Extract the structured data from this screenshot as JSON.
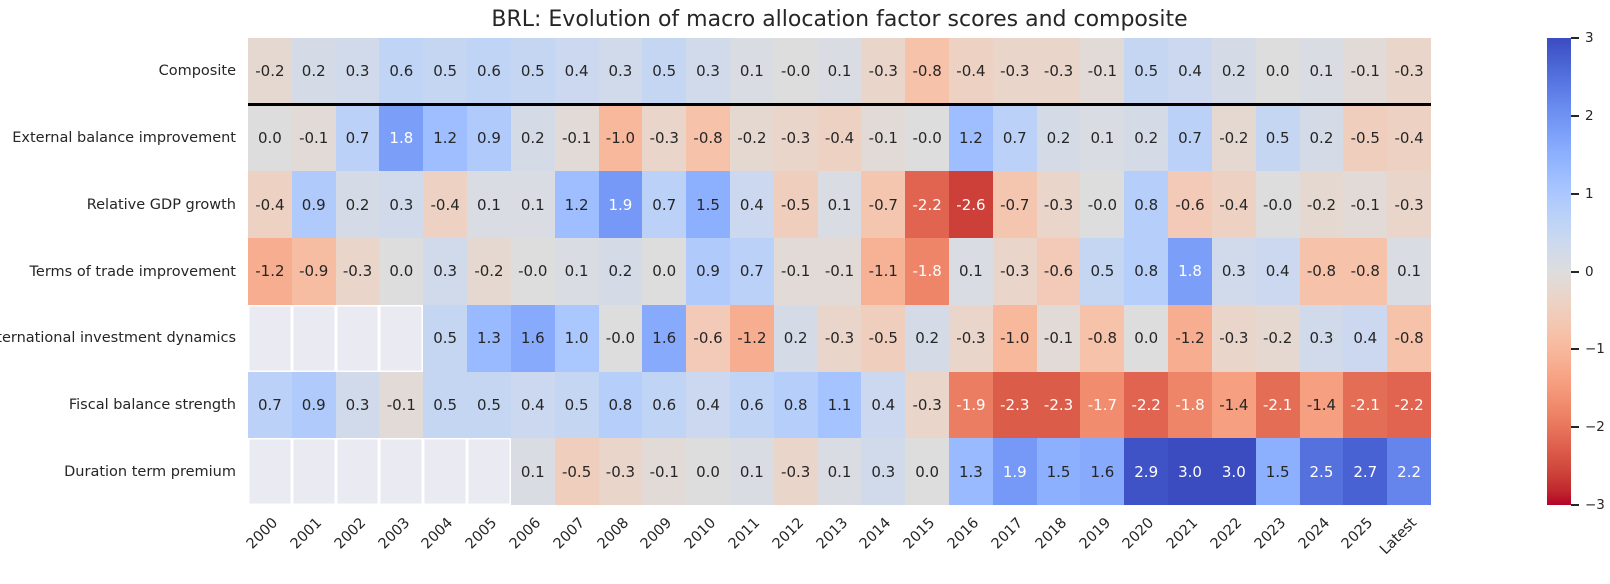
{
  "chart_data": {
    "type": "heatmap",
    "title": "BRL: Evolution of macro allocation factor scores and composite",
    "columns": [
      "2000",
      "2001",
      "2002",
      "2003",
      "2004",
      "2005",
      "2006",
      "2007",
      "2008",
      "2009",
      "2010",
      "2011",
      "2012",
      "2013",
      "2014",
      "2015",
      "2016",
      "2017",
      "2018",
      "2019",
      "2020",
      "2021",
      "2022",
      "2023",
      "2024",
      "2025",
      "Latest"
    ],
    "rows": [
      {
        "label": "Composite",
        "values": [
          "-0.2",
          "0.2",
          "0.3",
          "0.6",
          "0.5",
          "0.6",
          "0.5",
          "0.4",
          "0.3",
          "0.5",
          "0.3",
          "0.1",
          "-0.0",
          "0.1",
          "-0.3",
          "-0.8",
          "-0.4",
          "-0.3",
          "-0.3",
          "-0.1",
          "0.5",
          "0.4",
          "0.2",
          "0.0",
          "0.1",
          "-0.1",
          "-0.3"
        ]
      },
      {
        "label": "External balance improvement",
        "values": [
          "0.0",
          "-0.1",
          "0.7",
          "1.8",
          "1.2",
          "0.9",
          "0.2",
          "-0.1",
          "-1.0",
          "-0.3",
          "-0.8",
          "-0.2",
          "-0.3",
          "-0.4",
          "-0.1",
          "-0.0",
          "1.2",
          "0.7",
          "0.2",
          "0.1",
          "0.2",
          "0.7",
          "-0.2",
          "0.5",
          "0.2",
          "-0.5",
          "-0.4"
        ]
      },
      {
        "label": "Relative GDP growth",
        "values": [
          "-0.4",
          "0.9",
          "0.2",
          "0.3",
          "-0.4",
          "0.1",
          "0.1",
          "1.2",
          "1.9",
          "0.7",
          "1.5",
          "0.4",
          "-0.5",
          "0.1",
          "-0.7",
          "-2.2",
          "-2.6",
          "-0.7",
          "-0.3",
          "-0.0",
          "0.8",
          "-0.6",
          "-0.4",
          "-0.0",
          "-0.2",
          "-0.1",
          "-0.3"
        ]
      },
      {
        "label": "Terms of trade improvement",
        "values": [
          "-1.2",
          "-0.9",
          "-0.3",
          "0.0",
          "0.3",
          "-0.2",
          "-0.0",
          "0.1",
          "0.2",
          "0.0",
          "0.9",
          "0.7",
          "-0.1",
          "-0.1",
          "-1.1",
          "-1.8",
          "0.1",
          "-0.3",
          "-0.6",
          "0.5",
          "0.8",
          "1.8",
          "0.3",
          "0.4",
          "-0.8",
          "-0.8",
          "0.1"
        ]
      },
      {
        "label": "International investment dynamics",
        "values": [
          null,
          null,
          null,
          null,
          "0.5",
          "1.3",
          "1.6",
          "1.0",
          "-0.0",
          "1.6",
          "-0.6",
          "-1.2",
          "0.2",
          "-0.3",
          "-0.5",
          "0.2",
          "-0.3",
          "-1.0",
          "-0.1",
          "-0.8",
          "0.0",
          "-1.2",
          "-0.3",
          "-0.2",
          "0.3",
          "0.4",
          "-0.8"
        ]
      },
      {
        "label": "Fiscal balance strength",
        "values": [
          "0.7",
          "0.9",
          "0.3",
          "-0.1",
          "0.5",
          "0.5",
          "0.4",
          "0.5",
          "0.8",
          "0.6",
          "0.4",
          "0.6",
          "0.8",
          "1.1",
          "0.4",
          "-0.3",
          "-1.9",
          "-2.3",
          "-2.3",
          "-1.7",
          "-2.2",
          "-1.8",
          "-1.4",
          "-2.1",
          "-1.4",
          "-2.1",
          "-2.2"
        ]
      },
      {
        "label": "Duration term premium",
        "values": [
          null,
          null,
          null,
          null,
          null,
          null,
          "0.1",
          "-0.5",
          "-0.3",
          "-0.1",
          "0.0",
          "0.1",
          "-0.3",
          "0.1",
          "0.3",
          "0.0",
          "1.3",
          "1.9",
          "1.5",
          "1.6",
          "2.9",
          "3.0",
          "3.0",
          "1.5",
          "2.5",
          "2.7",
          "2.2"
        ]
      }
    ],
    "value_range": {
      "vmin": -3,
      "vmax": 3
    },
    "colormap": "coolwarm reversed (blue = positive, red = negative)",
    "colorbar_ticks": [
      {
        "value": 3,
        "label": "3"
      },
      {
        "value": 2,
        "label": "2"
      },
      {
        "value": 1,
        "label": "1"
      },
      {
        "value": 0,
        "label": "0"
      },
      {
        "value": -1,
        "label": "−1"
      },
      {
        "value": -2,
        "label": "−2"
      },
      {
        "value": -3,
        "label": "−3"
      }
    ],
    "layout": {
      "separator_below_row": "Composite",
      "x_tick_rotation_deg": 45,
      "missing_cells": "blank",
      "legend_position": "right-colorbar",
      "grid": "white gridlines visible in blank cells"
    }
  },
  "colors": {
    "background": "#ffffff",
    "annotation_dark": "#262626",
    "annotation_light": "#ffffff",
    "missing_cell": "#eaeaf2",
    "separator": "#000000",
    "positive_extreme": "#3b4cc0",
    "neutral": "#dddddd",
    "negative_extreme": "#b40426"
  }
}
